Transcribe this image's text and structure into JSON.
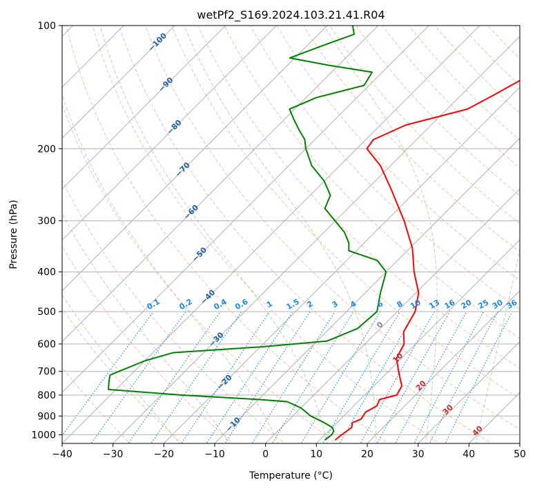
{
  "chart_data": {
    "type": "line",
    "title": "wetPf2_S169.2024.103.21.41.R04",
    "xlabel": "Temperature (°C)",
    "ylabel": "Pressure (hPa)",
    "xlim": [
      -40,
      50
    ],
    "ylim": [
      1050,
      100
    ],
    "y_log_scale": true,
    "skew_degrees": 45,
    "grid": true,
    "x_ticks": [
      "−40",
      "−30",
      "−20",
      "−10",
      "0",
      "10",
      "20",
      "30",
      "40",
      "50"
    ],
    "y_ticks": [
      "100",
      "200",
      "300",
      "400",
      "500",
      "600",
      "700",
      "800",
      "900",
      "1000"
    ],
    "series": [
      {
        "role": "temperature",
        "color": "#ff0000",
        "points": [
          [
            1030,
            13.0
          ],
          [
            1005,
            13.2
          ],
          [
            960,
            13.8
          ],
          [
            935,
            13.0
          ],
          [
            915,
            14.0
          ],
          [
            880,
            13.5
          ],
          [
            850,
            14.5
          ],
          [
            820,
            13.8
          ],
          [
            800,
            16.3
          ],
          [
            760,
            15.5
          ],
          [
            700,
            12.0
          ],
          [
            650,
            9.0
          ],
          [
            600,
            7.7
          ],
          [
            560,
            5.2
          ],
          [
            500,
            3.5
          ],
          [
            450,
            0.5
          ],
          [
            400,
            -4.5
          ],
          [
            350,
            -9.5
          ],
          [
            300,
            -16.5
          ],
          [
            250,
            -25.5
          ],
          [
            220,
            -32.0
          ],
          [
            200,
            -38.0
          ],
          [
            190,
            -38.5
          ],
          [
            175,
            -35.0
          ],
          [
            160,
            -26.0
          ],
          [
            150,
            -24.0
          ],
          [
            130,
            -20.0
          ],
          [
            115,
            -17.0
          ],
          [
            100,
            -18.5
          ]
        ]
      },
      {
        "role": "dewpoint",
        "color": "#008000",
        "points": [
          [
            1030,
            11.0
          ],
          [
            1000,
            11.3
          ],
          [
            980,
            11.0
          ],
          [
            960,
            10.0
          ],
          [
            930,
            7.0
          ],
          [
            900,
            3.5
          ],
          [
            860,
            0.0
          ],
          [
            830,
            -4.0
          ],
          [
            820,
            -10.0
          ],
          [
            800,
            -26.0
          ],
          [
            775,
            -41.5
          ],
          [
            740,
            -43.0
          ],
          [
            715,
            -44.0
          ],
          [
            700,
            -43.0
          ],
          [
            660,
            -40.0
          ],
          [
            630,
            -36.0
          ],
          [
            610,
            -20.0
          ],
          [
            590,
            -8.0
          ],
          [
            550,
            -4.5
          ],
          [
            500,
            -4.0
          ],
          [
            450,
            -7.0
          ],
          [
            400,
            -10.0
          ],
          [
            375,
            -14.0
          ],
          [
            355,
            -21.5
          ],
          [
            340,
            -23.0
          ],
          [
            320,
            -26.0
          ],
          [
            280,
            -34.5
          ],
          [
            260,
            -36.0
          ],
          [
            240,
            -40.0
          ],
          [
            220,
            -45.5
          ],
          [
            200,
            -50.0
          ],
          [
            190,
            -52.0
          ],
          [
            180,
            -55.0
          ],
          [
            170,
            -58.0
          ],
          [
            160,
            -61.0
          ],
          [
            150,
            -58.0
          ],
          [
            140,
            -51.0
          ],
          [
            130,
            -52.0
          ],
          [
            125,
            -62.0
          ],
          [
            120,
            -71.0
          ],
          [
            112,
            -67.0
          ],
          [
            105,
            -63.0
          ],
          [
            100,
            -65.0
          ]
        ]
      }
    ],
    "background_lines": {
      "isotherms": {
        "color": "#b0b0b0",
        "values": [
          -120,
          -110,
          -100,
          -90,
          -80,
          -70,
          -60,
          -50,
          -40,
          -30,
          -20,
          -10,
          0,
          10,
          20,
          30,
          40,
          50
        ]
      },
      "dry_adiabats": {
        "color": "#f4a582",
        "values": [
          -30,
          -20,
          -10,
          0,
          10,
          20,
          30,
          40,
          50,
          60,
          70,
          80,
          90,
          100,
          110,
          120,
          130,
          140,
          150,
          160,
          170,
          180,
          190,
          200,
          210,
          220,
          230,
          240
        ]
      },
      "moist_adiabats": {
        "color": "#8fc98f",
        "values": [
          -20,
          -10,
          0,
          10,
          20,
          30,
          40
        ]
      },
      "mixing_ratios": {
        "color": "#1e88e5",
        "values": [
          0.1,
          0.2,
          0.4,
          0.6,
          1,
          1.5,
          2,
          3,
          4,
          6,
          8,
          10,
          13,
          16,
          20,
          25,
          30,
          36
        ]
      }
    },
    "isotherm_labels": [
      "−100",
      "−90",
      "−80",
      "−70",
      "−60",
      "−50",
      "−40",
      "−30",
      "−20",
      "−10"
    ],
    "mixing_ratio_labels": [
      "0.1",
      "0.2",
      "0.4",
      "0.6",
      "1",
      "1.5",
      "2",
      "3",
      "4",
      "6",
      "8",
      "10",
      "13",
      "16",
      "20",
      "25",
      "30",
      "36"
    ],
    "misc_labels": [
      {
        "text": "0",
        "color": "#888888"
      },
      {
        "text": "10",
        "color": "#d62728"
      },
      {
        "text": "20",
        "color": "#d62728"
      },
      {
        "text": "30",
        "color": "#d62728"
      },
      {
        "text": "40",
        "color": "#d62728"
      }
    ]
  }
}
